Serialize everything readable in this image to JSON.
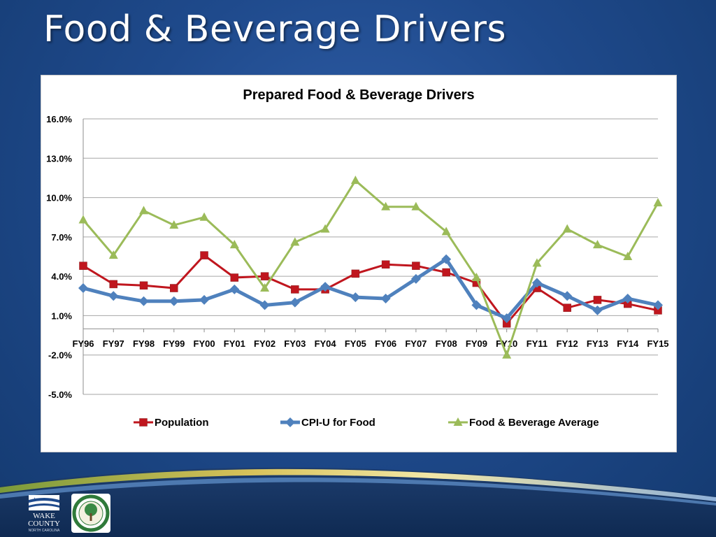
{
  "slide": {
    "title": "Food & Beverage Drivers"
  },
  "logos": {
    "county_name_line1": "WAKE",
    "county_name_line2": "COUNTY",
    "county_tagline": "NORTH CAROLINA"
  },
  "colors": {
    "population": "#C0161E",
    "cpi": "#4F81BD",
    "average": "#9BBB59",
    "grid": "#a6a6a6"
  },
  "chart_data": {
    "type": "line",
    "title": "Prepared Food & Beverage Drivers",
    "categories": [
      "FY96",
      "FY97",
      "FY98",
      "FY99",
      "FY00",
      "FY01",
      "FY02",
      "FY03",
      "FY04",
      "FY05",
      "FY06",
      "FY07",
      "FY08",
      "FY09",
      "FY10",
      "FY11",
      "FY12",
      "FY13",
      "FY14",
      "FY15"
    ],
    "y_ticks": [
      "16.0%",
      "13.0%",
      "10.0%",
      "7.0%",
      "4.0%",
      "1.0%",
      "-2.0%",
      "-5.0%"
    ],
    "ylim": [
      -5.0,
      16.0
    ],
    "y_tick_step": 3.0,
    "grid": true,
    "legend_position": "bottom",
    "series": [
      {
        "name": "Population",
        "marker": "square",
        "values": [
          4.8,
          3.4,
          3.3,
          3.1,
          5.6,
          3.9,
          4.0,
          3.0,
          3.0,
          4.2,
          4.9,
          4.8,
          4.3,
          3.5,
          0.4,
          3.1,
          1.6,
          2.2,
          1.9,
          1.4
        ]
      },
      {
        "name": "CPI-U for Food",
        "marker": "diamond",
        "values": [
          3.1,
          2.5,
          2.1,
          2.1,
          2.2,
          3.0,
          1.8,
          2.0,
          3.2,
          2.4,
          2.3,
          3.8,
          5.3,
          1.8,
          0.8,
          3.5,
          2.5,
          1.4,
          2.3,
          1.8
        ]
      },
      {
        "name": "Food & Beverage Average",
        "marker": "triangle",
        "values": [
          8.3,
          5.6,
          9.0,
          7.9,
          8.5,
          6.4,
          3.1,
          6.6,
          7.6,
          11.3,
          9.3,
          9.3,
          7.4,
          3.9,
          -2.0,
          5.0,
          7.6,
          6.4,
          5.5,
          9.6
        ]
      }
    ]
  }
}
